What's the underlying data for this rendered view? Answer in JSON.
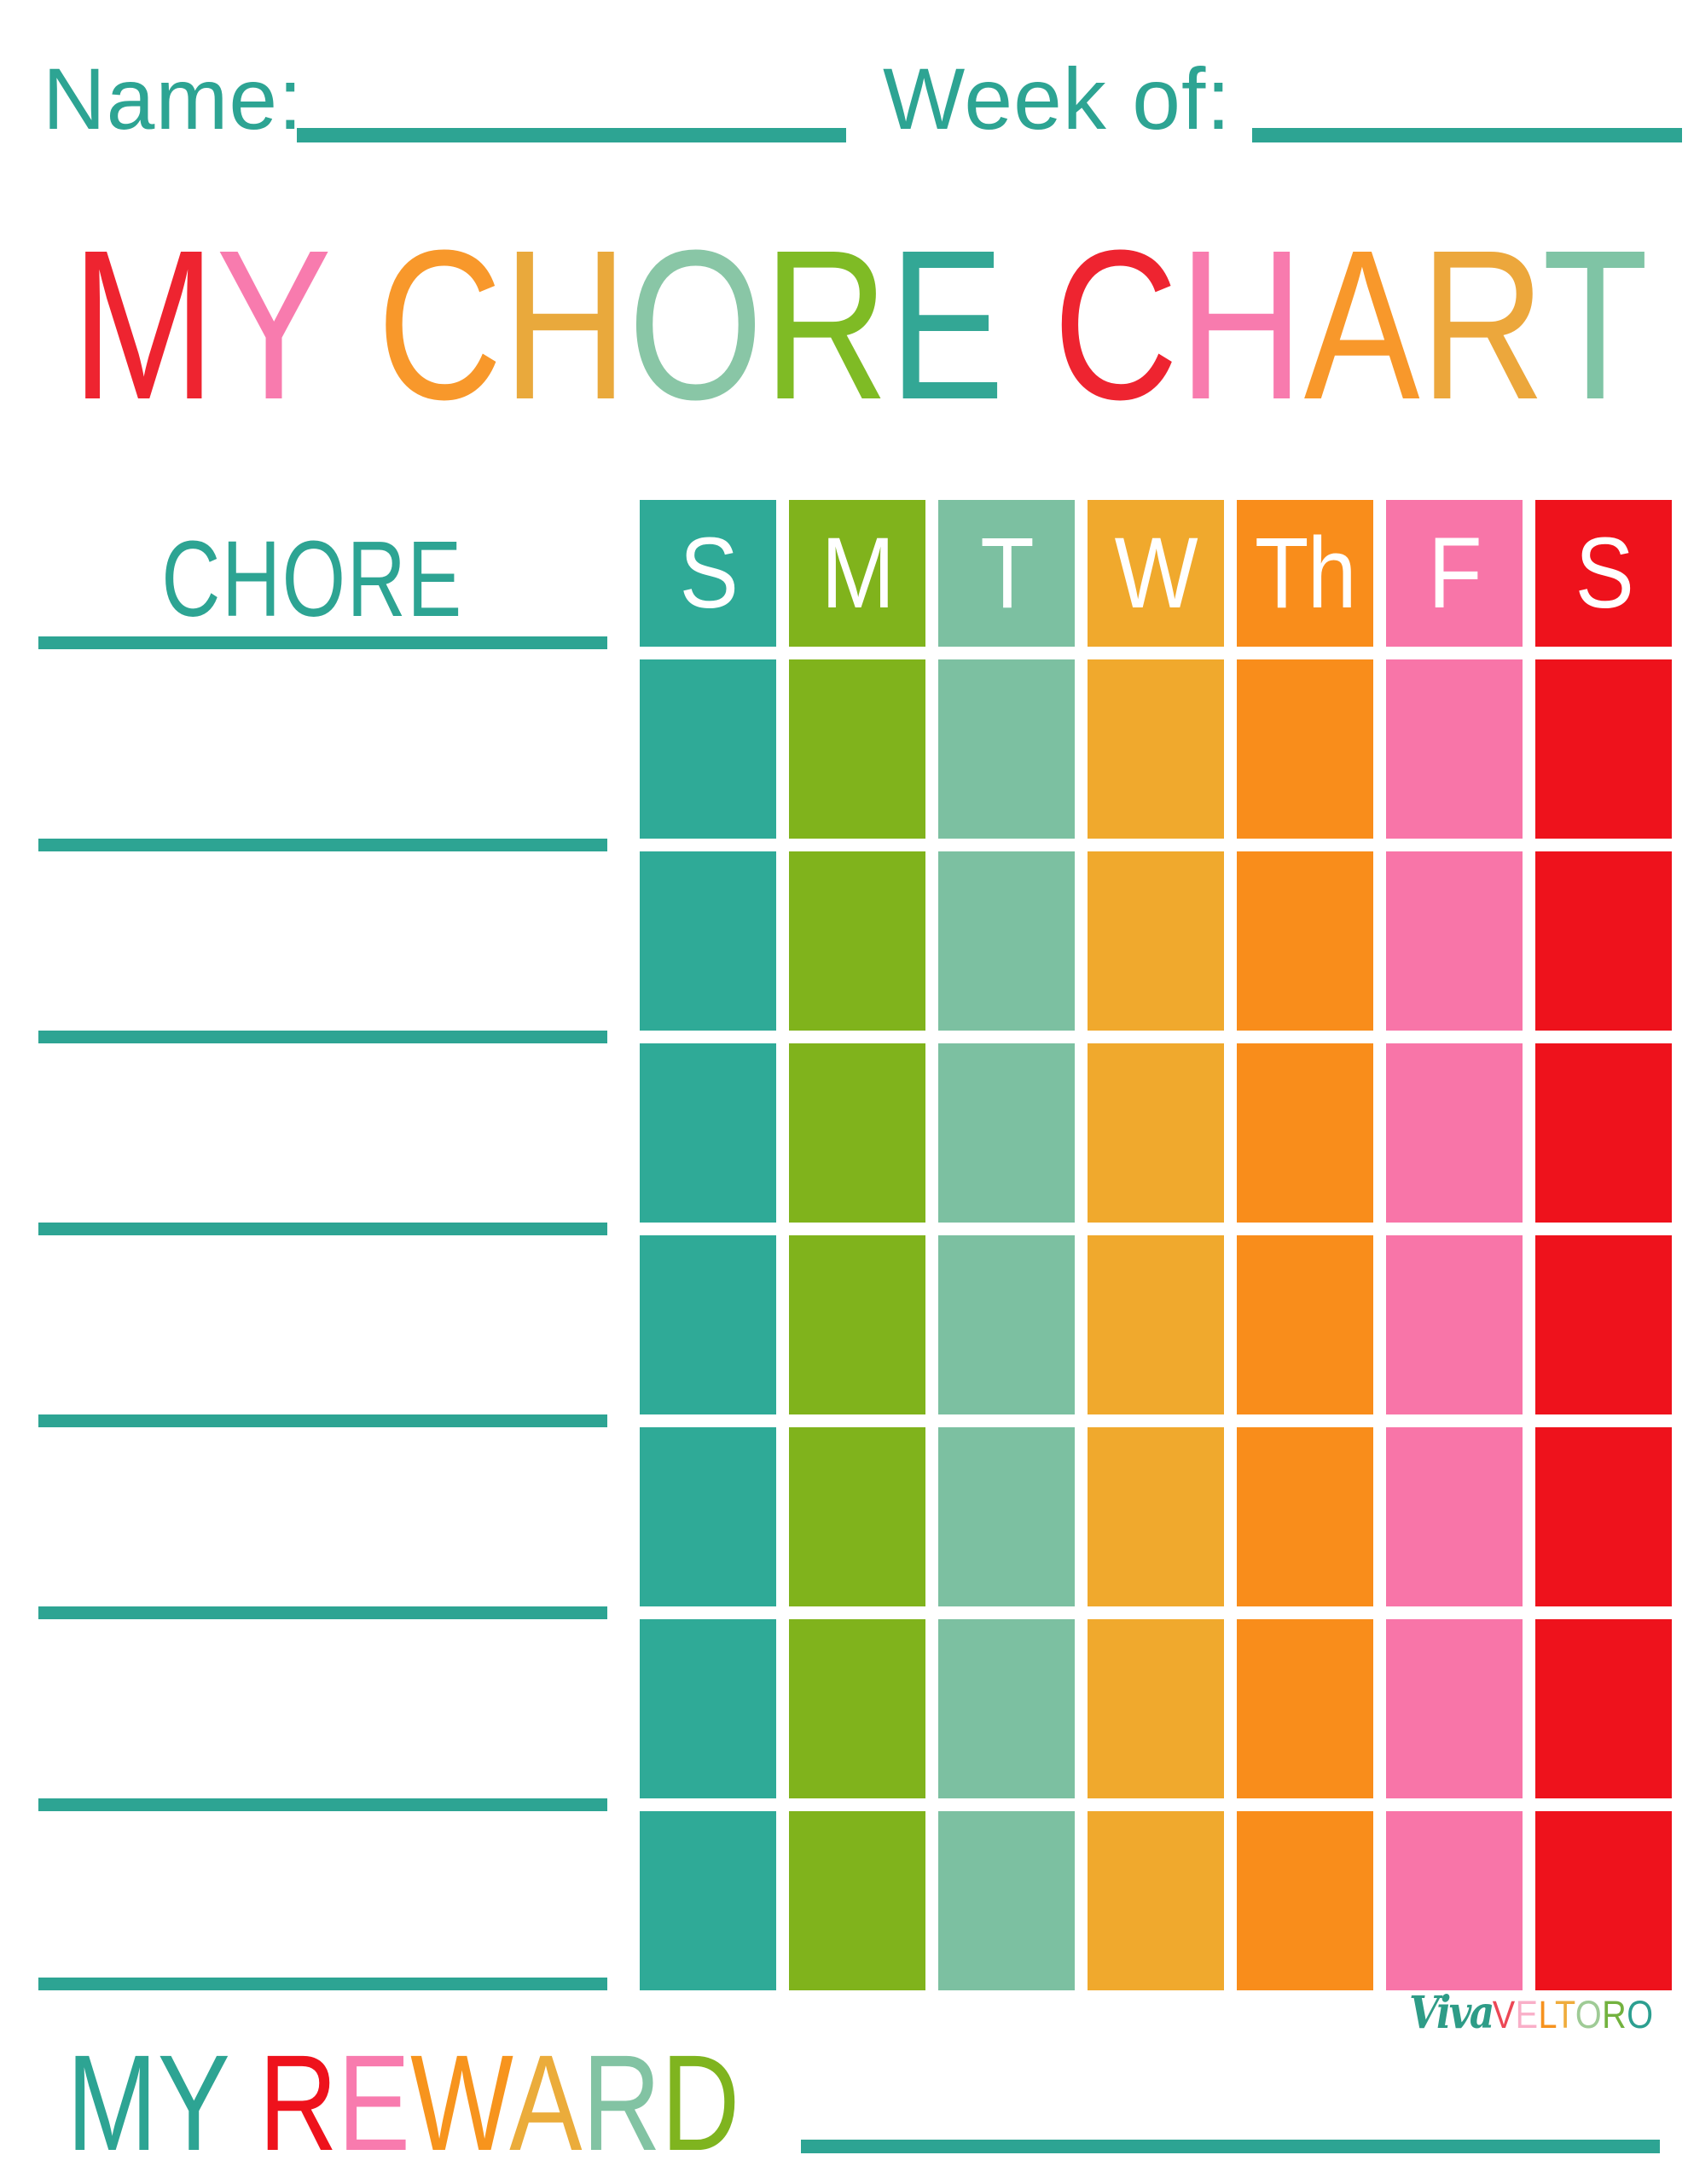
{
  "header": {
    "name_label": "Name:",
    "week_label": "Week of:"
  },
  "title": {
    "text": "MY CHORE CHART",
    "letters": [
      {
        "ch": "M",
        "color": "#ee2430"
      },
      {
        "ch": "Y",
        "color": "#f87bae"
      },
      {
        "ch": " ",
        "color": ""
      },
      {
        "ch": "C",
        "color": "#f8982b"
      },
      {
        "ch": "H",
        "color": "#e9a93c"
      },
      {
        "ch": "O",
        "color": "#89c6a6"
      },
      {
        "ch": "R",
        "color": "#7fbb25"
      },
      {
        "ch": "E",
        "color": "#33a795"
      },
      {
        "ch": " ",
        "color": ""
      },
      {
        "ch": "C",
        "color": "#ee2430"
      },
      {
        "ch": "H",
        "color": "#f87bae"
      },
      {
        "ch": "A",
        "color": "#f8982b"
      },
      {
        "ch": "R",
        "color": "#eca73c"
      },
      {
        "ch": "T",
        "color": "#7fc4a5"
      }
    ]
  },
  "chore_column": {
    "header": "CHORE",
    "blank_line_count": 8
  },
  "week_grid": {
    "header_text_color": "#ffffff",
    "body_rows": 7,
    "day_headers": [
      {
        "label": "S",
        "color": "#2faa97"
      },
      {
        "label": "M",
        "color": "#80b31c"
      },
      {
        "label": "T",
        "color": "#7cc0a1"
      },
      {
        "label": "W",
        "color": "#f0a92d"
      },
      {
        "label": "Th",
        "color": "#f98d1b"
      },
      {
        "label": "F",
        "color": "#f875a8"
      },
      {
        "label": "S",
        "color": "#ee121c"
      }
    ]
  },
  "logo": {
    "viva": "Viva",
    "veltoro": "VELTORO",
    "viva_color": "#2e9c87",
    "veltoro_letters": [
      {
        "ch": "V",
        "color": "#ec4755"
      },
      {
        "ch": "E",
        "color": "#f9afc8"
      },
      {
        "ch": "L",
        "color": "#f6921e"
      },
      {
        "ch": "T",
        "color": "#efac3c"
      },
      {
        "ch": "O",
        "color": "#9fcb96"
      },
      {
        "ch": "R",
        "color": "#73b23f"
      },
      {
        "ch": "O",
        "color": "#2c9f90"
      }
    ]
  },
  "reward": {
    "text": "MY REWARD",
    "letters": [
      {
        "ch": "M",
        "color": "#2da493"
      },
      {
        "ch": "Y",
        "color": "#2da493"
      },
      {
        "ch": " ",
        "color": ""
      },
      {
        "ch": "R",
        "color": "#ee121c"
      },
      {
        "ch": "E",
        "color": "#f87bae"
      },
      {
        "ch": "W",
        "color": "#f7941d"
      },
      {
        "ch": "A",
        "color": "#ebac3b"
      },
      {
        "ch": "R",
        "color": "#82c3a3"
      },
      {
        "ch": "D",
        "color": "#7fb41f"
      }
    ]
  },
  "colors": {
    "label_teal": "#2da493",
    "background": "#ffffff"
  }
}
